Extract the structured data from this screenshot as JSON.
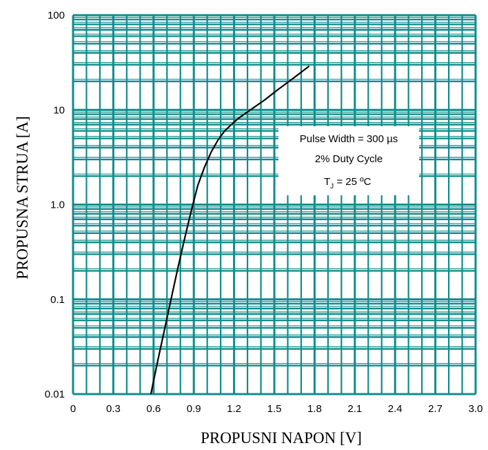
{
  "chart_data": {
    "type": "line",
    "x_label": "PROPUSNI NAPON [V]",
    "y_label": "PROPUSNA STRUA [A]",
    "x_range": [
      0,
      3.0
    ],
    "y_range": [
      0.01,
      100
    ],
    "y_scale": "log",
    "grid": true,
    "grid_color": "#0f8c8c",
    "line_color": "#000000",
    "x_ticks": [
      "0",
      "0.3",
      "0.6",
      "0.9",
      "1.2",
      "1.5",
      "1.8",
      "2.1",
      "2.4",
      "2.7",
      "3.0"
    ],
    "y_ticks": [
      "100",
      "10",
      "1.0",
      "0.1",
      "0.01"
    ],
    "y_tick_values": [
      100,
      10,
      1,
      0.1,
      0.01
    ],
    "series": [
      {
        "x": [
          0.58,
          0.63,
          0.68,
          0.73,
          0.78,
          0.83,
          0.88,
          0.93,
          0.98,
          1.03,
          1.08,
          1.13,
          1.18,
          1.23,
          1.33,
          1.43,
          1.53,
          1.63,
          1.76
        ],
        "y": [
          0.01,
          0.022,
          0.047,
          0.1,
          0.21,
          0.43,
          0.85,
          1.6,
          2.5,
          3.6,
          4.8,
          6.0,
          7.0,
          8.1,
          10.2,
          12.8,
          16.5,
          21,
          29
        ]
      }
    ],
    "annotations": [
      "Pulse Width = 300 µs",
      "2% Duty Cycle",
      "T",
      "J",
      " = 25 ºC"
    ]
  }
}
